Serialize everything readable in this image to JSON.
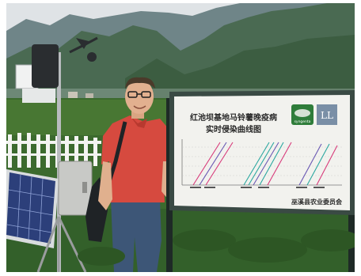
{
  "sign": {
    "title_line1": "红池坝基地马铃薯晚疫病",
    "title_line2": "实时侵染曲线图",
    "footer": "巫溪县农业委员会",
    "logo_left": "syngenta",
    "logo_right": "LL"
  },
  "colors": {
    "sky": "#dfe3e6",
    "mountain_far": "#6f8588",
    "mountain_near": "#3f5a45",
    "field": "#3c6a2e",
    "shirt": "#d64a3f",
    "jeans": "#3d5677",
    "board": "#f2f2ee",
    "accent_pink": "#d83a7a",
    "accent_teal": "#2aa7a0",
    "accent_purple": "#6a58b3"
  }
}
